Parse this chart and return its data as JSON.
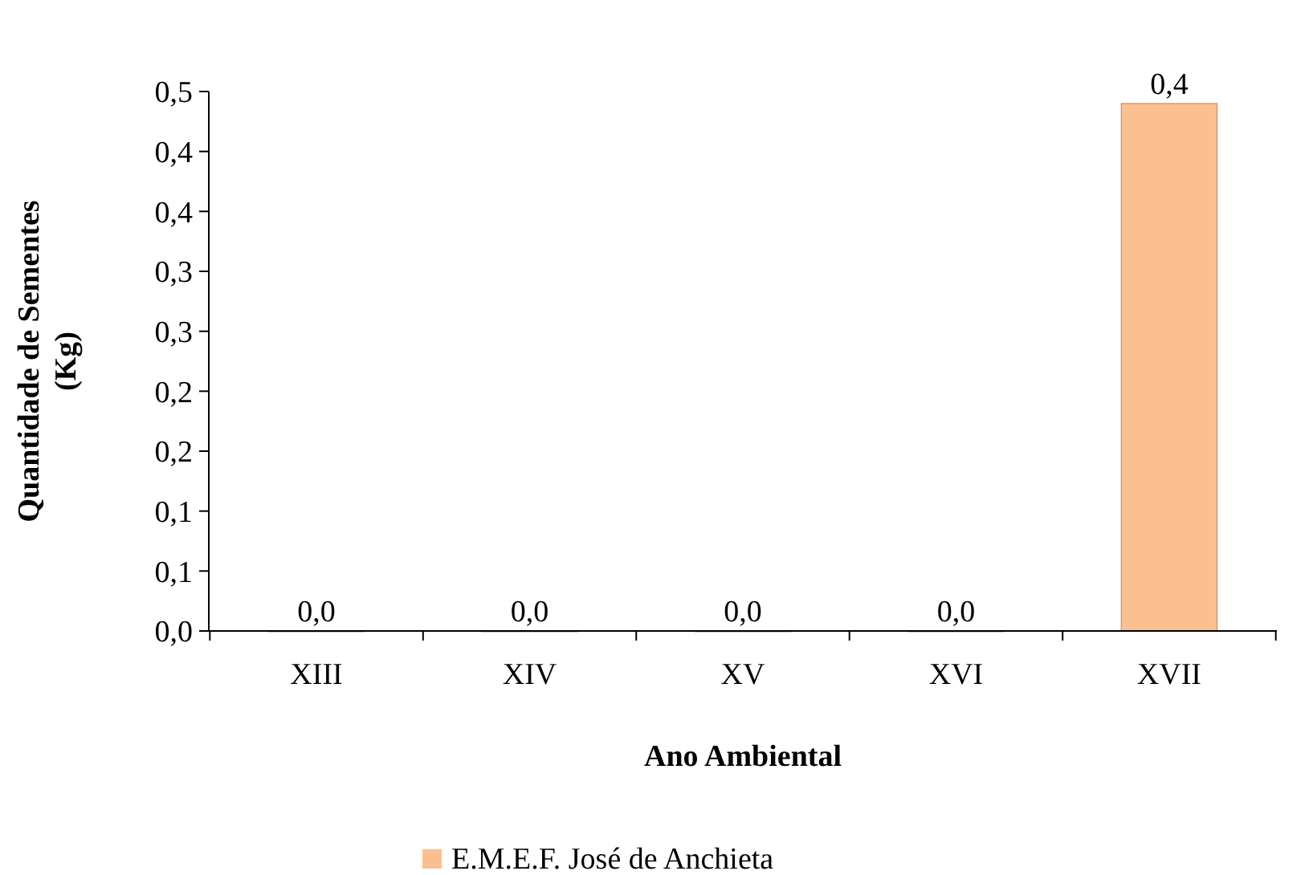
{
  "chart_data": {
    "type": "bar",
    "xlabel": "Ano Ambiental",
    "ylabel": "Quantidade de Sementes (Kg)",
    "categories": [
      "XIII",
      "XIV",
      "XV",
      "XVI",
      "XVII"
    ],
    "series": [
      {
        "name": "E.M.E.F. José de Anchieta",
        "color": "#fac090",
        "values": [
          0,
          0,
          0,
          0,
          0.44
        ],
        "value_labels": [
          "0,0",
          "0,0",
          "0,0",
          "0,0",
          "0,4"
        ]
      }
    ],
    "ylim": [
      0,
      0.45
    ],
    "yticks": [
      {
        "value": 0,
        "label": "0,0"
      },
      {
        "value": 0.05,
        "label": "0,1"
      },
      {
        "value": 0.1,
        "label": "0,1"
      },
      {
        "value": 0.15,
        "label": "0,2"
      },
      {
        "value": 0.2,
        "label": "0,2"
      },
      {
        "value": 0.25,
        "label": "0,3"
      },
      {
        "value": 0.3,
        "label": "0,3"
      },
      {
        "value": 0.35,
        "label": "0,4"
      },
      {
        "value": 0.4,
        "label": "0,4"
      },
      {
        "value": 0.45,
        "label": "0,5"
      }
    ],
    "grid": false,
    "legend": "bottom"
  }
}
